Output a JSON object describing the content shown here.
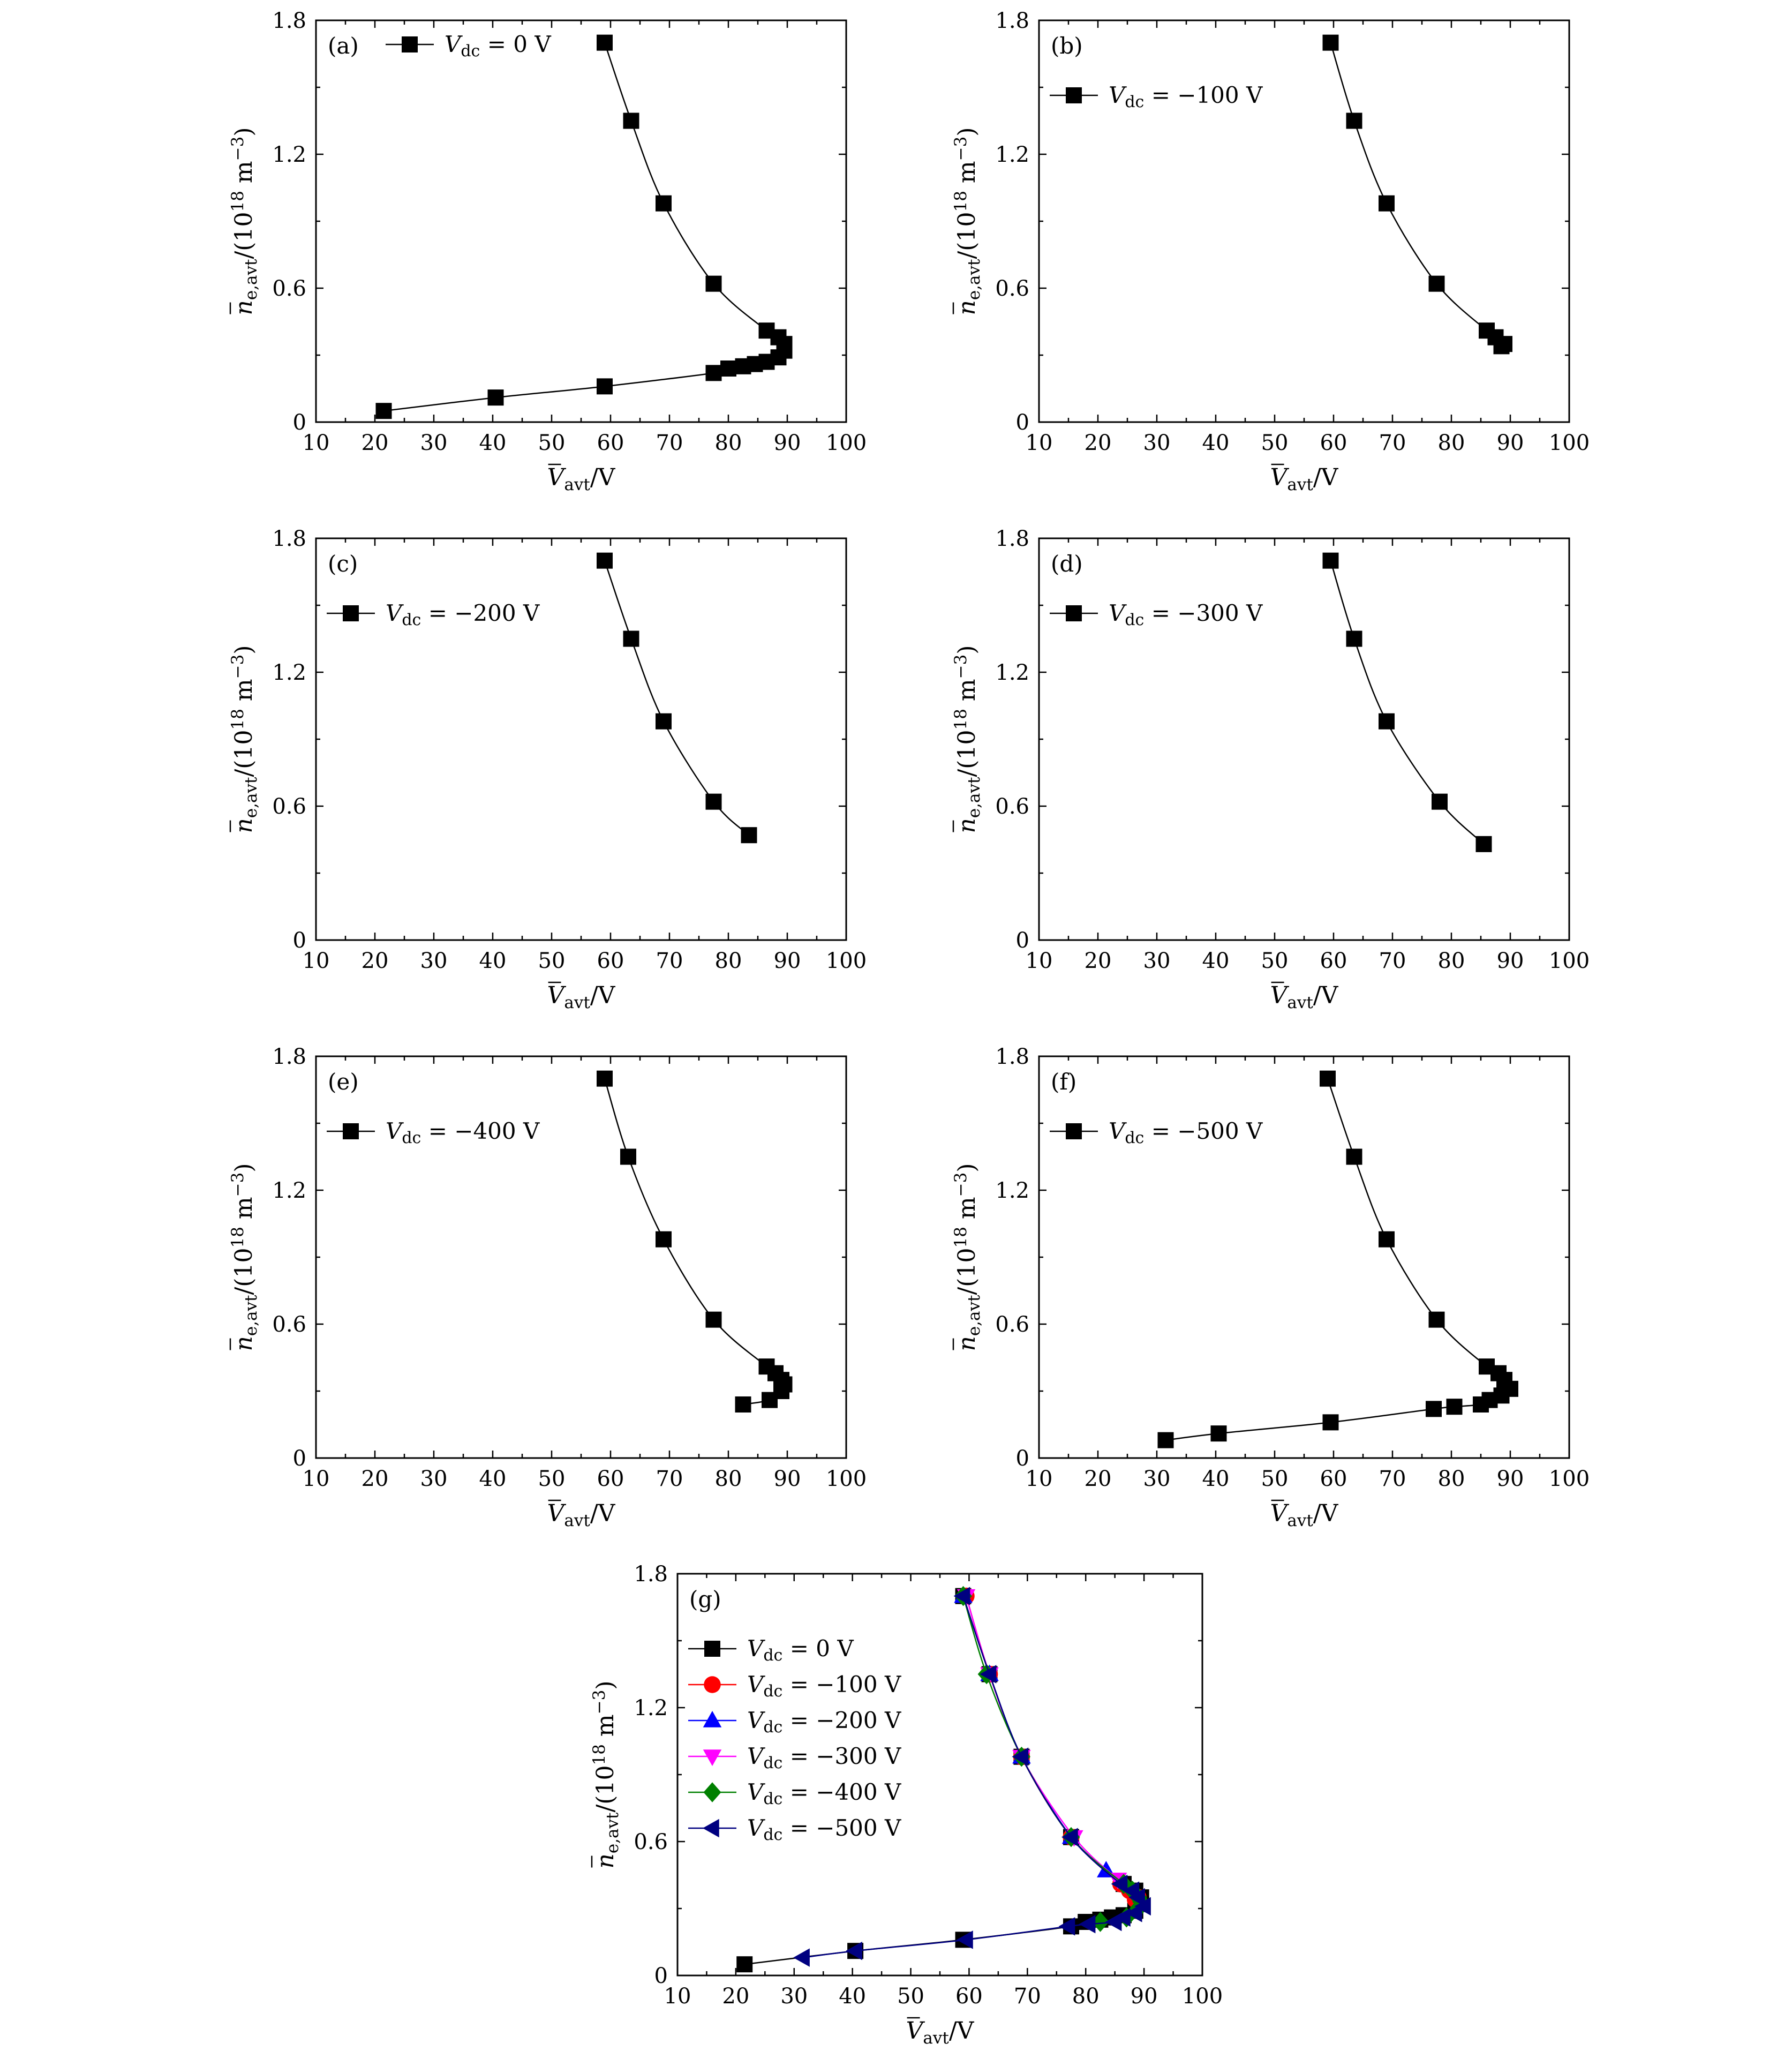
{
  "colors": {
    "V0": "#000000",
    "V100": "#ff0000",
    "V200": "#0000ff",
    "V300": "#ff00ff",
    "V400": "#008000",
    "V500": "#000080",
    "axis": "#000000"
  },
  "axes": {
    "xlabel": "V̄avt/V",
    "ylabel": "n̄e,avt/(10^18 m^-3)",
    "xlim": [
      10,
      100
    ],
    "ylim": [
      0,
      1.8
    ],
    "xticks": [
      "10",
      "20",
      "30",
      "40",
      "50",
      "60",
      "70",
      "80",
      "90",
      "100"
    ],
    "yticks": [
      "0",
      "0.6",
      "1.2",
      "1.8"
    ]
  },
  "chart_data": [
    {
      "panel": "(a)",
      "type": "line",
      "xlabel": "V̄avt/V",
      "ylabel": "n̄e,avt/(10^18 m^-3)",
      "xlim": [
        10,
        100
      ],
      "ylim": [
        0,
        1.8
      ],
      "legend_position": "top-left",
      "series": [
        {
          "name": "Vdc = 0 V",
          "marker": "square",
          "color": "#000000",
          "x": [
            59.0,
            63.5,
            69.0,
            77.5,
            86.5,
            88.5,
            89.5,
            89.5,
            88.5,
            86.5,
            84.5,
            82.5,
            80.0,
            77.5,
            59.0,
            40.5,
            21.5
          ],
          "y": [
            1.7,
            1.35,
            0.98,
            0.62,
            0.41,
            0.38,
            0.35,
            0.32,
            0.29,
            0.27,
            0.26,
            0.25,
            0.24,
            0.22,
            0.16,
            0.11,
            0.05
          ]
        }
      ]
    },
    {
      "panel": "(b)",
      "type": "line",
      "xlabel": "V̄avt/V",
      "ylabel": "n̄e,avt/(10^18 m^-3)",
      "xlim": [
        10,
        100
      ],
      "ylim": [
        0,
        1.8
      ],
      "legend_position": "top-left",
      "series": [
        {
          "name": "Vdc = −100 V",
          "marker": "square",
          "color": "#000000",
          "x": [
            59.5,
            63.5,
            69.0,
            77.5,
            86.0,
            87.5,
            89.0,
            88.5
          ],
          "y": [
            1.7,
            1.35,
            0.98,
            0.62,
            0.41,
            0.38,
            0.35,
            0.34
          ]
        }
      ]
    },
    {
      "panel": "(c)",
      "type": "line",
      "xlabel": "V̄avt/V",
      "ylabel": "n̄e,avt/(10^18 m^-3)",
      "xlim": [
        10,
        100
      ],
      "ylim": [
        0,
        1.8
      ],
      "legend_position": "top-left",
      "series": [
        {
          "name": "Vdc = −200 V",
          "marker": "square",
          "color": "#000000",
          "x": [
            59.0,
            63.5,
            69.0,
            77.5,
            83.5
          ],
          "y": [
            1.7,
            1.35,
            0.98,
            0.62,
            0.47
          ]
        }
      ]
    },
    {
      "panel": "(d)",
      "type": "line",
      "xlabel": "V̄avt/V",
      "ylabel": "n̄e,avt/(10^18 m^-3)",
      "xlim": [
        10,
        100
      ],
      "ylim": [
        0,
        1.8
      ],
      "legend_position": "top-left",
      "series": [
        {
          "name": "Vdc = −300 V",
          "marker": "square",
          "color": "#000000",
          "x": [
            59.5,
            63.5,
            69.0,
            78.0,
            85.5
          ],
          "y": [
            1.7,
            1.35,
            0.98,
            0.62,
            0.43
          ]
        }
      ]
    },
    {
      "panel": "(e)",
      "type": "line",
      "xlabel": "V̄avt/V",
      "ylabel": "n̄e,avt/(10^18 m^-3)",
      "xlim": [
        10,
        100
      ],
      "ylim": [
        0,
        1.8
      ],
      "legend_position": "top-left",
      "series": [
        {
          "name": "Vdc = −400 V",
          "marker": "square",
          "color": "#000000",
          "x": [
            59.0,
            63.0,
            69.0,
            77.5,
            86.5,
            88.0,
            89.0,
            89.5,
            89.0,
            87.0,
            82.5
          ],
          "y": [
            1.7,
            1.35,
            0.98,
            0.62,
            0.41,
            0.38,
            0.35,
            0.33,
            0.3,
            0.26,
            0.24
          ]
        }
      ]
    },
    {
      "panel": "(f)",
      "type": "line",
      "xlabel": "V̄avt/V",
      "ylabel": "n̄e,avt/(10^18 m^-3)",
      "xlim": [
        10,
        100
      ],
      "ylim": [
        0,
        1.8
      ],
      "legend_position": "top-left",
      "series": [
        {
          "name": "Vdc = −500 V",
          "marker": "square",
          "color": "#000000",
          "x": [
            59.0,
            63.5,
            69.0,
            77.5,
            86.0,
            88.0,
            89.0,
            90.0,
            88.5,
            86.5,
            85.0,
            80.5,
            77.0,
            59.5,
            40.5,
            31.5
          ],
          "y": [
            1.7,
            1.35,
            0.98,
            0.62,
            0.41,
            0.38,
            0.35,
            0.31,
            0.28,
            0.26,
            0.24,
            0.23,
            0.22,
            0.16,
            0.11,
            0.08
          ]
        }
      ]
    },
    {
      "panel": "(g)",
      "type": "line",
      "xlabel": "V̄avt/V",
      "ylabel": "n̄e,avt/(10^18 m^-3)",
      "xlim": [
        10,
        100
      ],
      "ylim": [
        0,
        1.8
      ],
      "legend_position": "top-left",
      "series": [
        {
          "name": "Vdc = 0 V",
          "marker": "square",
          "color": "#000000",
          "x": [
            59.0,
            63.5,
            69.0,
            77.5,
            86.5,
            88.5,
            89.5,
            89.5,
            88.5,
            86.5,
            84.5,
            82.5,
            80.0,
            77.5,
            59.0,
            40.5,
            21.5
          ],
          "y": [
            1.7,
            1.35,
            0.98,
            0.62,
            0.41,
            0.38,
            0.35,
            0.32,
            0.29,
            0.27,
            0.26,
            0.25,
            0.24,
            0.22,
            0.16,
            0.11,
            0.05
          ]
        },
        {
          "name": "Vdc = −100 V",
          "marker": "circle",
          "color": "#ff0000",
          "x": [
            59.5,
            63.5,
            69.0,
            77.5,
            86.0,
            87.5,
            89.0,
            88.5
          ],
          "y": [
            1.7,
            1.35,
            0.98,
            0.62,
            0.41,
            0.38,
            0.35,
            0.34
          ]
        },
        {
          "name": "Vdc = −200 V",
          "marker": "triangle-up",
          "color": "#0000ff",
          "x": [
            59.0,
            63.5,
            69.0,
            77.5,
            83.5
          ],
          "y": [
            1.7,
            1.35,
            0.98,
            0.62,
            0.47
          ]
        },
        {
          "name": "Vdc = −300 V",
          "marker": "triangle-down",
          "color": "#ff00ff",
          "x": [
            59.5,
            63.5,
            69.0,
            78.0,
            85.5
          ],
          "y": [
            1.7,
            1.35,
            0.98,
            0.62,
            0.43
          ]
        },
        {
          "name": "Vdc = −400 V",
          "marker": "diamond",
          "color": "#008000",
          "x": [
            59.0,
            63.0,
            69.0,
            77.5,
            86.5,
            88.0,
            89.0,
            89.5,
            89.0,
            87.0,
            82.5
          ],
          "y": [
            1.7,
            1.35,
            0.98,
            0.62,
            0.41,
            0.38,
            0.35,
            0.33,
            0.3,
            0.26,
            0.24
          ]
        },
        {
          "name": "Vdc = −500 V",
          "marker": "triangle-left",
          "color": "#000080",
          "x": [
            59.0,
            63.5,
            69.0,
            77.5,
            86.0,
            88.0,
            89.0,
            90.0,
            88.5,
            86.5,
            85.0,
            80.5,
            77.0,
            59.5,
            40.5,
            31.5
          ],
          "y": [
            1.7,
            1.35,
            0.98,
            0.62,
            0.41,
            0.38,
            0.35,
            0.31,
            0.28,
            0.26,
            0.24,
            0.23,
            0.22,
            0.16,
            0.11,
            0.08
          ]
        }
      ]
    }
  ]
}
